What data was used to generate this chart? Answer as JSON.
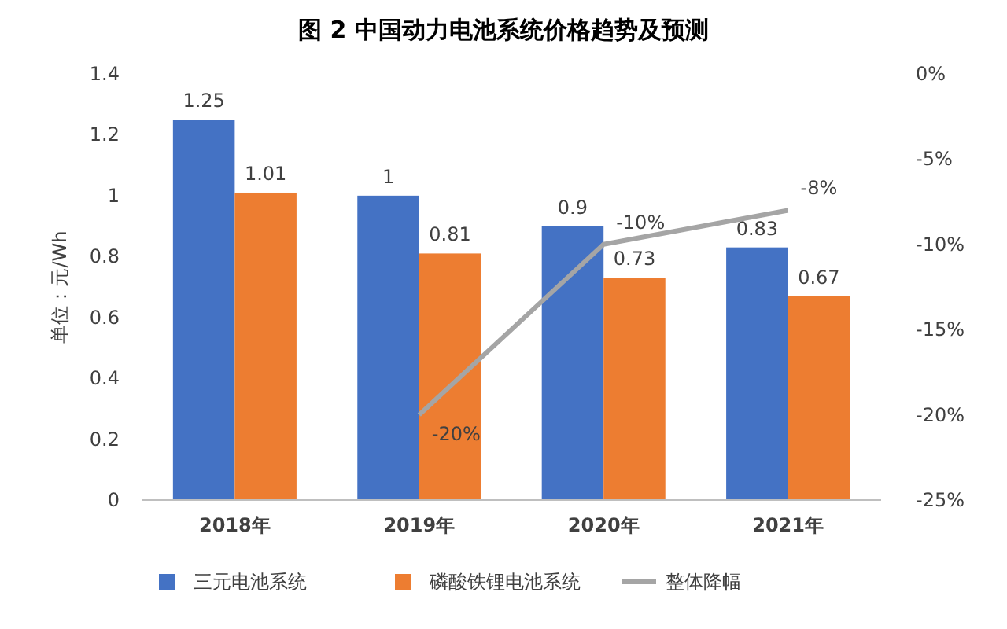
{
  "chart_data": {
    "type": "bar",
    "title": "图 2 中国动力电池系统价格趋势及预测",
    "ylabel": "单位：元/Wh",
    "categories": [
      "2018年",
      "2019年",
      "2020年",
      "2021年"
    ],
    "series": [
      {
        "name": "三元电池系统",
        "color": "#4472c4",
        "values": [
          1.25,
          1,
          0.9,
          0.83
        ]
      },
      {
        "name": "磷酸铁锂电池系统",
        "color": "#ed7d31",
        "values": [
          1.01,
          0.81,
          0.73,
          0.67
        ]
      },
      {
        "name": "整体降幅",
        "type": "line",
        "axis": "y2",
        "color": "#a5a5a5",
        "values": [
          null,
          -20,
          -10,
          -8
        ],
        "value_labels": [
          null,
          "-20%",
          "-10%",
          "-8%"
        ]
      }
    ],
    "ylim": [
      0,
      1.4
    ],
    "yticks": [
      0,
      0.2,
      0.4,
      0.6,
      0.8,
      1,
      1.2,
      1.4
    ],
    "y2lim": [
      -25,
      0
    ],
    "y2ticks": [
      {
        "value": 0,
        "label": "0%"
      },
      {
        "value": -5,
        "label": "-5%"
      },
      {
        "value": -10,
        "label": "-10%"
      },
      {
        "value": -15,
        "label": "-15%"
      },
      {
        "value": -20,
        "label": "-20%"
      },
      {
        "value": -25,
        "label": "-25%"
      }
    ],
    "data_labels": true,
    "legend": "bottom",
    "grid": false,
    "marker": "none",
    "line_style": "solid"
  }
}
